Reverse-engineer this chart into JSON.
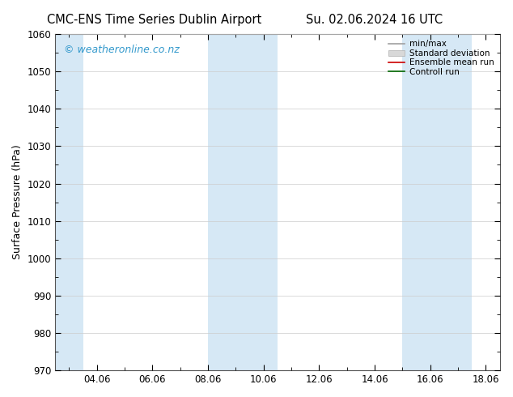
{
  "title_left": "CMC-ENS Time Series Dublin Airport",
  "title_right": "Su. 02.06.2024 16 UTC",
  "ylabel": "Surface Pressure (hPa)",
  "watermark": "© weatheronline.co.nz",
  "ylim": [
    970,
    1060
  ],
  "yticks": [
    970,
    980,
    990,
    1000,
    1010,
    1020,
    1030,
    1040,
    1050,
    1060
  ],
  "xlim_start": 2.5,
  "xlim_end": 18.5,
  "xtick_labels": [
    "04.06",
    "06.06",
    "08.06",
    "10.06",
    "12.06",
    "14.06",
    "16.06",
    "18.06"
  ],
  "xtick_positions": [
    4,
    6,
    8,
    10,
    12,
    14,
    16,
    18
  ],
  "shaded_bands": [
    {
      "x_start": 2.5,
      "x_end": 3.5
    },
    {
      "x_start": 8.0,
      "x_end": 10.5
    },
    {
      "x_start": 15.0,
      "x_end": 17.5
    }
  ],
  "band_color": "#d6e8f5",
  "background_color": "#ffffff",
  "plot_bg_color": "#ffffff",
  "legend_items": [
    {
      "label": "min/max",
      "color": "#a0a0a0",
      "lw": 1.2,
      "linestyle": "-"
    },
    {
      "label": "Standard deviation",
      "color": "#c8c8c8",
      "lw": 5,
      "linestyle": "-"
    },
    {
      "label": "Ensemble mean run",
      "color": "#cc0000",
      "lw": 1.2,
      "linestyle": "-"
    },
    {
      "label": "Controll run",
      "color": "#006600",
      "lw": 1.2,
      "linestyle": "-"
    }
  ],
  "title_fontsize": 10.5,
  "tick_fontsize": 8.5,
  "ylabel_fontsize": 9,
  "watermark_fontsize": 9,
  "watermark_color": "#3399cc",
  "grid_color": "#cccccc",
  "border_color": "#555555"
}
